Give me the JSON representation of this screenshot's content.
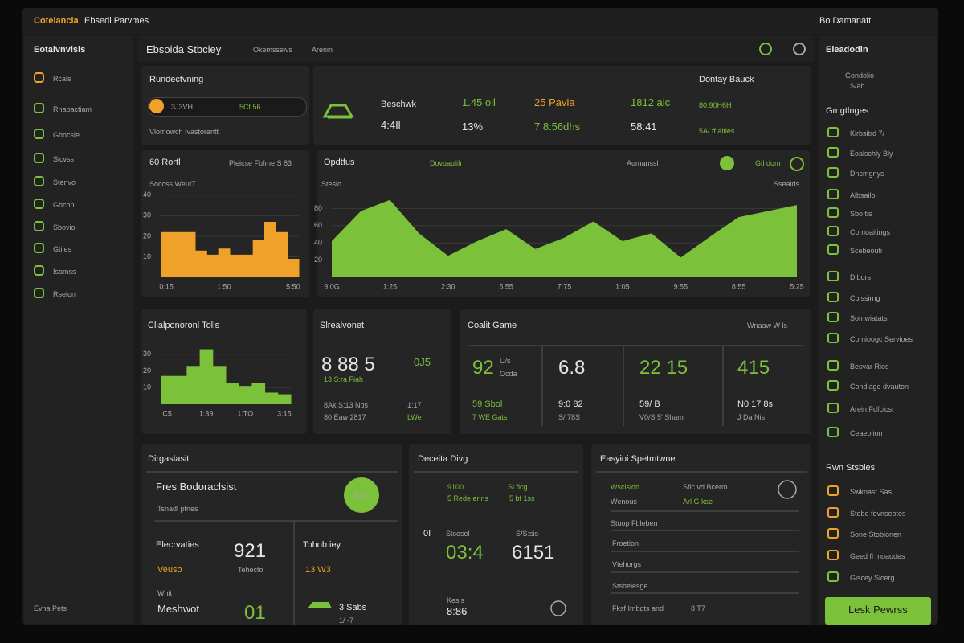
{
  "header": {
    "brand": "Cotelancia",
    "title": "Ebsedl Parvmes",
    "user": "Bo Damanatt"
  },
  "sidebar": {
    "title": "Eotalvnvisis",
    "items": [
      "Rcals",
      "Rnabactiam",
      "Gbocsie",
      "Sicvss",
      "Stenvo",
      "Gbcon",
      "Sbovio",
      "Gtiles",
      "Isamss",
      "Rseion"
    ],
    "footer": "Evna Pets"
  },
  "tabs": [
    "Ebsoida Stbciey",
    "Okemsseivs",
    "Arenin"
  ],
  "progress_card": {
    "title": "Rundectvning",
    "label": "3J3VH",
    "value": "5Ct 56",
    "note": "Vlomowch Ivastorantt"
  },
  "summary": {
    "title": "Dontay Bauck",
    "name": "Beschwk",
    "sub": "4:4Il",
    "stats": [
      [
        "1.45 oll",
        "13%"
      ],
      [
        "25 Pavia",
        "7 8:56dhs"
      ],
      [
        "1812 aic",
        "58:41"
      ]
    ],
    "side": [
      "80:90H6H",
      "5A/ ff alties"
    ]
  },
  "charts": [
    {
      "type": "bar",
      "title": "60 Rortl",
      "note": "Pleicse Fbfme S 83",
      "subtitle": "Soccss WeutT",
      "categories": [
        "0:15",
        null,
        null,
        null,
        null,
        "1:50",
        null,
        null,
        null,
        null,
        null,
        "5:50"
      ],
      "values": [
        22,
        22,
        22,
        13,
        11,
        14,
        11,
        11,
        18,
        27,
        22,
        9
      ],
      "color": "#f0a12a",
      "ylim": [
        0,
        45
      ],
      "yticks": [
        10,
        20,
        30,
        40
      ]
    },
    {
      "type": "area",
      "title": "Opdtfus",
      "notes": [
        "Dovuaulifr",
        "Aumanssl",
        "Gtl dom"
      ],
      "subtitle": "Stesio",
      "side_label": "Ssealds",
      "categories": [
        "9:0G",
        null,
        "1:25",
        null,
        "2:30",
        null,
        "5:55",
        null,
        "7:75",
        null,
        "1:05",
        null,
        "9:55",
        null,
        "8:55",
        null,
        "5:25"
      ],
      "values": [
        42,
        77,
        90,
        51,
        25,
        42,
        56,
        33,
        46,
        65,
        42,
        51,
        23,
        47,
        70,
        77,
        84
      ],
      "color": "#7cc13a",
      "ylim": [
        0,
        100
      ],
      "yticks": [
        20,
        40,
        60,
        80
      ]
    },
    {
      "type": "bar",
      "title": "Clialponoronl Tolls",
      "categories": [
        "C5",
        null,
        null,
        "1:39",
        null,
        null,
        "1:TO",
        null,
        null,
        "3:15"
      ],
      "values": [
        17,
        17,
        23,
        33,
        23,
        13,
        11,
        13,
        7,
        6
      ],
      "color": "#7cc13a",
      "ylim": [
        0,
        40
      ],
      "yticks": [
        10,
        20,
        30
      ]
    }
  ],
  "stat_card": {
    "title": "Slrealvonet",
    "items": [
      "8 88 5",
      "0J5",
      "13 S:ra Fiah",
      "8Ak S:13 Nbs",
      "1:17",
      "80 Eaw 2817",
      "LWe"
    ]
  },
  "game_card": {
    "title": "Coalit Game",
    "menu": "Wnaaw W ls",
    "unit": [
      "U/s",
      "Ocda"
    ],
    "cols": [
      {
        "big": "92",
        "a": "59 Sbol",
        "b": "7 WE Gats"
      },
      {
        "big": "6.8",
        "a": "9:0 82",
        "b": "S/ 78S"
      },
      {
        "big": "22 15",
        "a": "59/ B",
        "b": "V0/S 5' Sham"
      },
      {
        "big": "415",
        "a": "N0 17 8s",
        "b": "J Da Nis"
      }
    ]
  },
  "forecast": {
    "title": "Dirgaslasit",
    "items": [
      "Fres Bodoraclsist",
      "Tsnadl ptnes",
      "Sdlv",
      "Elecrvaties",
      "921",
      "Tohob iey",
      "Veuso",
      "Tehecto",
      "13 W3",
      "Whit",
      "Meshwot",
      "01",
      "3 Sabs",
      "1/ -7"
    ]
  },
  "data_card": {
    "title": "Deceita Divg",
    "items": [
      "9100",
      "Sl ficg",
      "5 Rede erins",
      "5 bf 1ss",
      "0I",
      "Stcosel",
      "S/S:sis",
      "03:4",
      "6151",
      "Kesis",
      "8:86"
    ]
  },
  "settings": {
    "title": "Easyioi Spetmtwne",
    "items": [
      "Wscision",
      "Sfic vd Bcerm",
      "Wenous",
      "Arl G kse",
      "Stuop Fbleben",
      "Froetion",
      "Vtehorgs",
      "Stshelesge",
      "Fksf Imbgts and",
      "8 T7"
    ]
  },
  "right": {
    "title": "Eleadodin",
    "sub": [
      "Gondolio",
      "S/ah"
    ],
    "section1": "Gmgtlnges",
    "section2": "Rwn Stsbles",
    "groups": [
      [
        "Kirbsitrd 7/",
        "Eoalschly Bly",
        "Dncmgnys",
        "Albsailo",
        "Sbo tis",
        "Comoaitings",
        "Scebeouti"
      ],
      [
        "Dibors",
        "Cbissirng",
        "Somwiatats",
        "Comioogc Servioes"
      ],
      [
        "Besvar Rios",
        "Condlage dvauton",
        "Arein Fdfcicst",
        "Ceaeoiion"
      ],
      [
        "Swknast Sas",
        "Stobe fovnseotes",
        "Sone Stobionen",
        "Geed fl moaodes",
        "Giscey Sicerg"
      ]
    ],
    "button": "Lesk Pewrss"
  }
}
